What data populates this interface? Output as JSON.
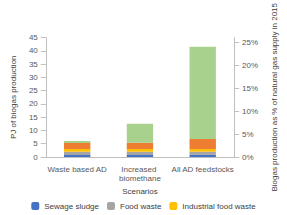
{
  "chart_data": {
    "type": "bar",
    "stacked": true,
    "grid": false,
    "legend": "bottom",
    "categories": [
      "Waste based AD",
      "Increased biomethane",
      "All AD feedstocks"
    ],
    "x_label": "Scenarios",
    "y_label": "PJ of biogas production",
    "y2_label": "Biogas production as % of natural gas supply in 2015",
    "ylim": [
      0,
      45
    ],
    "yticks": [
      0,
      5,
      10,
      15,
      20,
      25,
      30,
      35,
      40,
      45
    ],
    "y2lim": [
      0,
      26
    ],
    "y2ticks": [
      {
        "value": 0,
        "label": "0%"
      },
      {
        "value": 5,
        "label": "5%"
      },
      {
        "value": 10,
        "label": "10%"
      },
      {
        "value": 15,
        "label": "15%"
      },
      {
        "value": 20,
        "label": "20%"
      },
      {
        "value": 25,
        "label": "25%"
      }
    ],
    "series": [
      {
        "name": "Sewage sludge",
        "color": "#4472c4",
        "values": [
          0.8,
          0.8,
          0.8
        ]
      },
      {
        "name": "Food waste",
        "color": "#a5a5a5",
        "values": [
          1.2,
          1.2,
          1.2
        ]
      },
      {
        "name": "Industrial food waste",
        "color": "#ffc000",
        "values": [
          1.0,
          1.0,
          1.0
        ]
      },
      {
        "color": "#ed7d31",
        "values": [
          2.3,
          2.4,
          3.8
        ]
      },
      {
        "color": "#a9d18e",
        "values": [
          0.7,
          7.1,
          34.7
        ]
      }
    ]
  }
}
